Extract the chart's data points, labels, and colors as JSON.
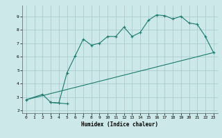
{
  "title": "",
  "xlabel": "Humidex (Indice chaleur)",
  "background_color": "#cce8e8",
  "grid_color": "#aacccc",
  "line_color": "#1a7a6e",
  "xlim": [
    -0.5,
    23.5
  ],
  "ylim": [
    1.8,
    9.8
  ],
  "xticks": [
    0,
    1,
    2,
    3,
    4,
    5,
    6,
    7,
    8,
    9,
    10,
    11,
    12,
    13,
    14,
    15,
    16,
    17,
    18,
    19,
    20,
    21,
    22,
    23
  ],
  "yticks": [
    2,
    3,
    4,
    5,
    6,
    7,
    8,
    9
  ],
  "curve1_x": [
    0,
    2,
    3,
    4,
    5,
    6,
    7,
    8,
    9,
    10,
    11,
    12,
    13,
    14,
    15,
    16,
    17,
    18,
    19,
    20,
    21,
    22,
    23
  ],
  "curve1_y": [
    2.8,
    3.2,
    2.6,
    2.55,
    4.8,
    6.05,
    7.3,
    6.85,
    7.0,
    7.5,
    7.5,
    8.2,
    7.5,
    7.8,
    8.7,
    9.1,
    9.05,
    8.8,
    9.0,
    8.5,
    8.4,
    7.5,
    6.3
  ],
  "curve2_x": [
    3,
    4,
    5
  ],
  "curve2_y": [
    2.6,
    2.55,
    2.5
  ],
  "curve3_x": [
    0,
    23
  ],
  "curve3_y": [
    2.8,
    6.3
  ]
}
